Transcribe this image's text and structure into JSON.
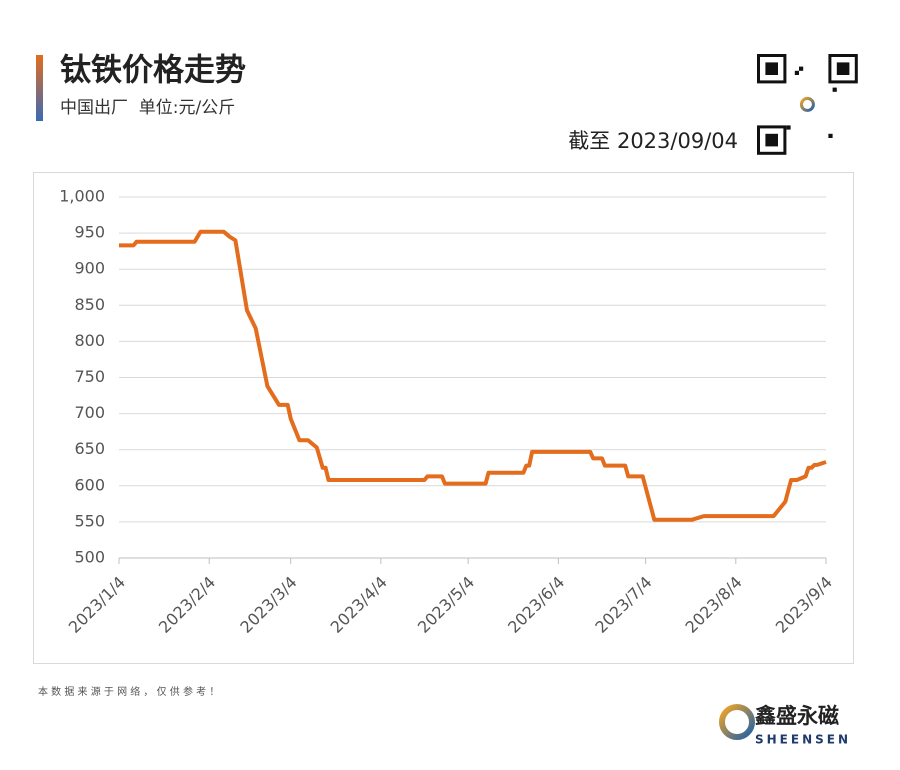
{
  "header": {
    "title": "钛铁价格走势",
    "subtitle": "中国出厂  单位:元/公斤",
    "as_of": "截至 2023/09/04"
  },
  "chart_data": {
    "type": "line",
    "x": [
      "2023/1/4",
      "2023/1/9",
      "2023/1/10",
      "2023/1/30",
      "2023/2/1",
      "2023/2/9",
      "2023/2/11",
      "2023/2/13",
      "2023/2/17",
      "2023/2/20",
      "2023/2/24",
      "2023/2/28",
      "2023/3/3",
      "2023/3/4",
      "2023/3/7",
      "2023/3/10",
      "2023/3/13",
      "2023/3/15",
      "2023/3/16",
      "2023/3/17",
      "2023/4/19",
      "2023/4/20",
      "2023/4/25",
      "2023/4/26",
      "2023/5/10",
      "2023/5/11",
      "2023/5/23",
      "2023/5/24",
      "2023/5/25",
      "2023/5/26",
      "2023/6/15",
      "2023/6/16",
      "2023/6/19",
      "2023/6/20",
      "2023/6/27",
      "2023/6/28",
      "2023/7/3",
      "2023/7/7",
      "2023/7/20",
      "2023/7/24",
      "2023/8/17",
      "2023/8/21",
      "2023/8/23",
      "2023/8/25",
      "2023/8/28",
      "2023/8/29",
      "2023/8/30",
      "2023/8/31",
      "2023/9/1",
      "2023/9/4"
    ],
    "series": [
      {
        "color": "#e36c1d",
        "values": [
          933,
          933,
          938,
          938,
          952,
          952,
          945,
          940,
          843,
          818,
          738,
          712,
          712,
          693,
          663,
          663,
          653,
          625,
          625,
          608,
          608,
          613,
          613,
          603,
          603,
          618,
          618,
          628,
          628,
          647,
          647,
          638,
          638,
          628,
          628,
          613,
          613,
          553,
          553,
          558,
          558,
          578,
          608,
          608,
          613,
          625,
          625,
          629,
          629,
          633
        ]
      }
    ],
    "xlim": [
      "2023/1/4",
      "2023/9/4"
    ],
    "xticks": [
      "2023/1/4",
      "2023/2/4",
      "2023/3/4",
      "2023/4/4",
      "2023/5/4",
      "2023/6/4",
      "2023/7/4",
      "2023/8/4",
      "2023/9/4"
    ],
    "ylim": [
      500,
      1000
    ],
    "yticks": [
      500,
      550,
      600,
      650,
      700,
      750,
      800,
      850,
      900,
      950,
      {
        "value": 1000,
        "label": "1,000"
      }
    ],
    "grid": true
  },
  "footer": {
    "note": "本 数 据 来 源 于 网 络 ， 仅 供 参 考 ！",
    "brand": "鑫盛永磁",
    "brand_en": "SHEENSEN"
  }
}
